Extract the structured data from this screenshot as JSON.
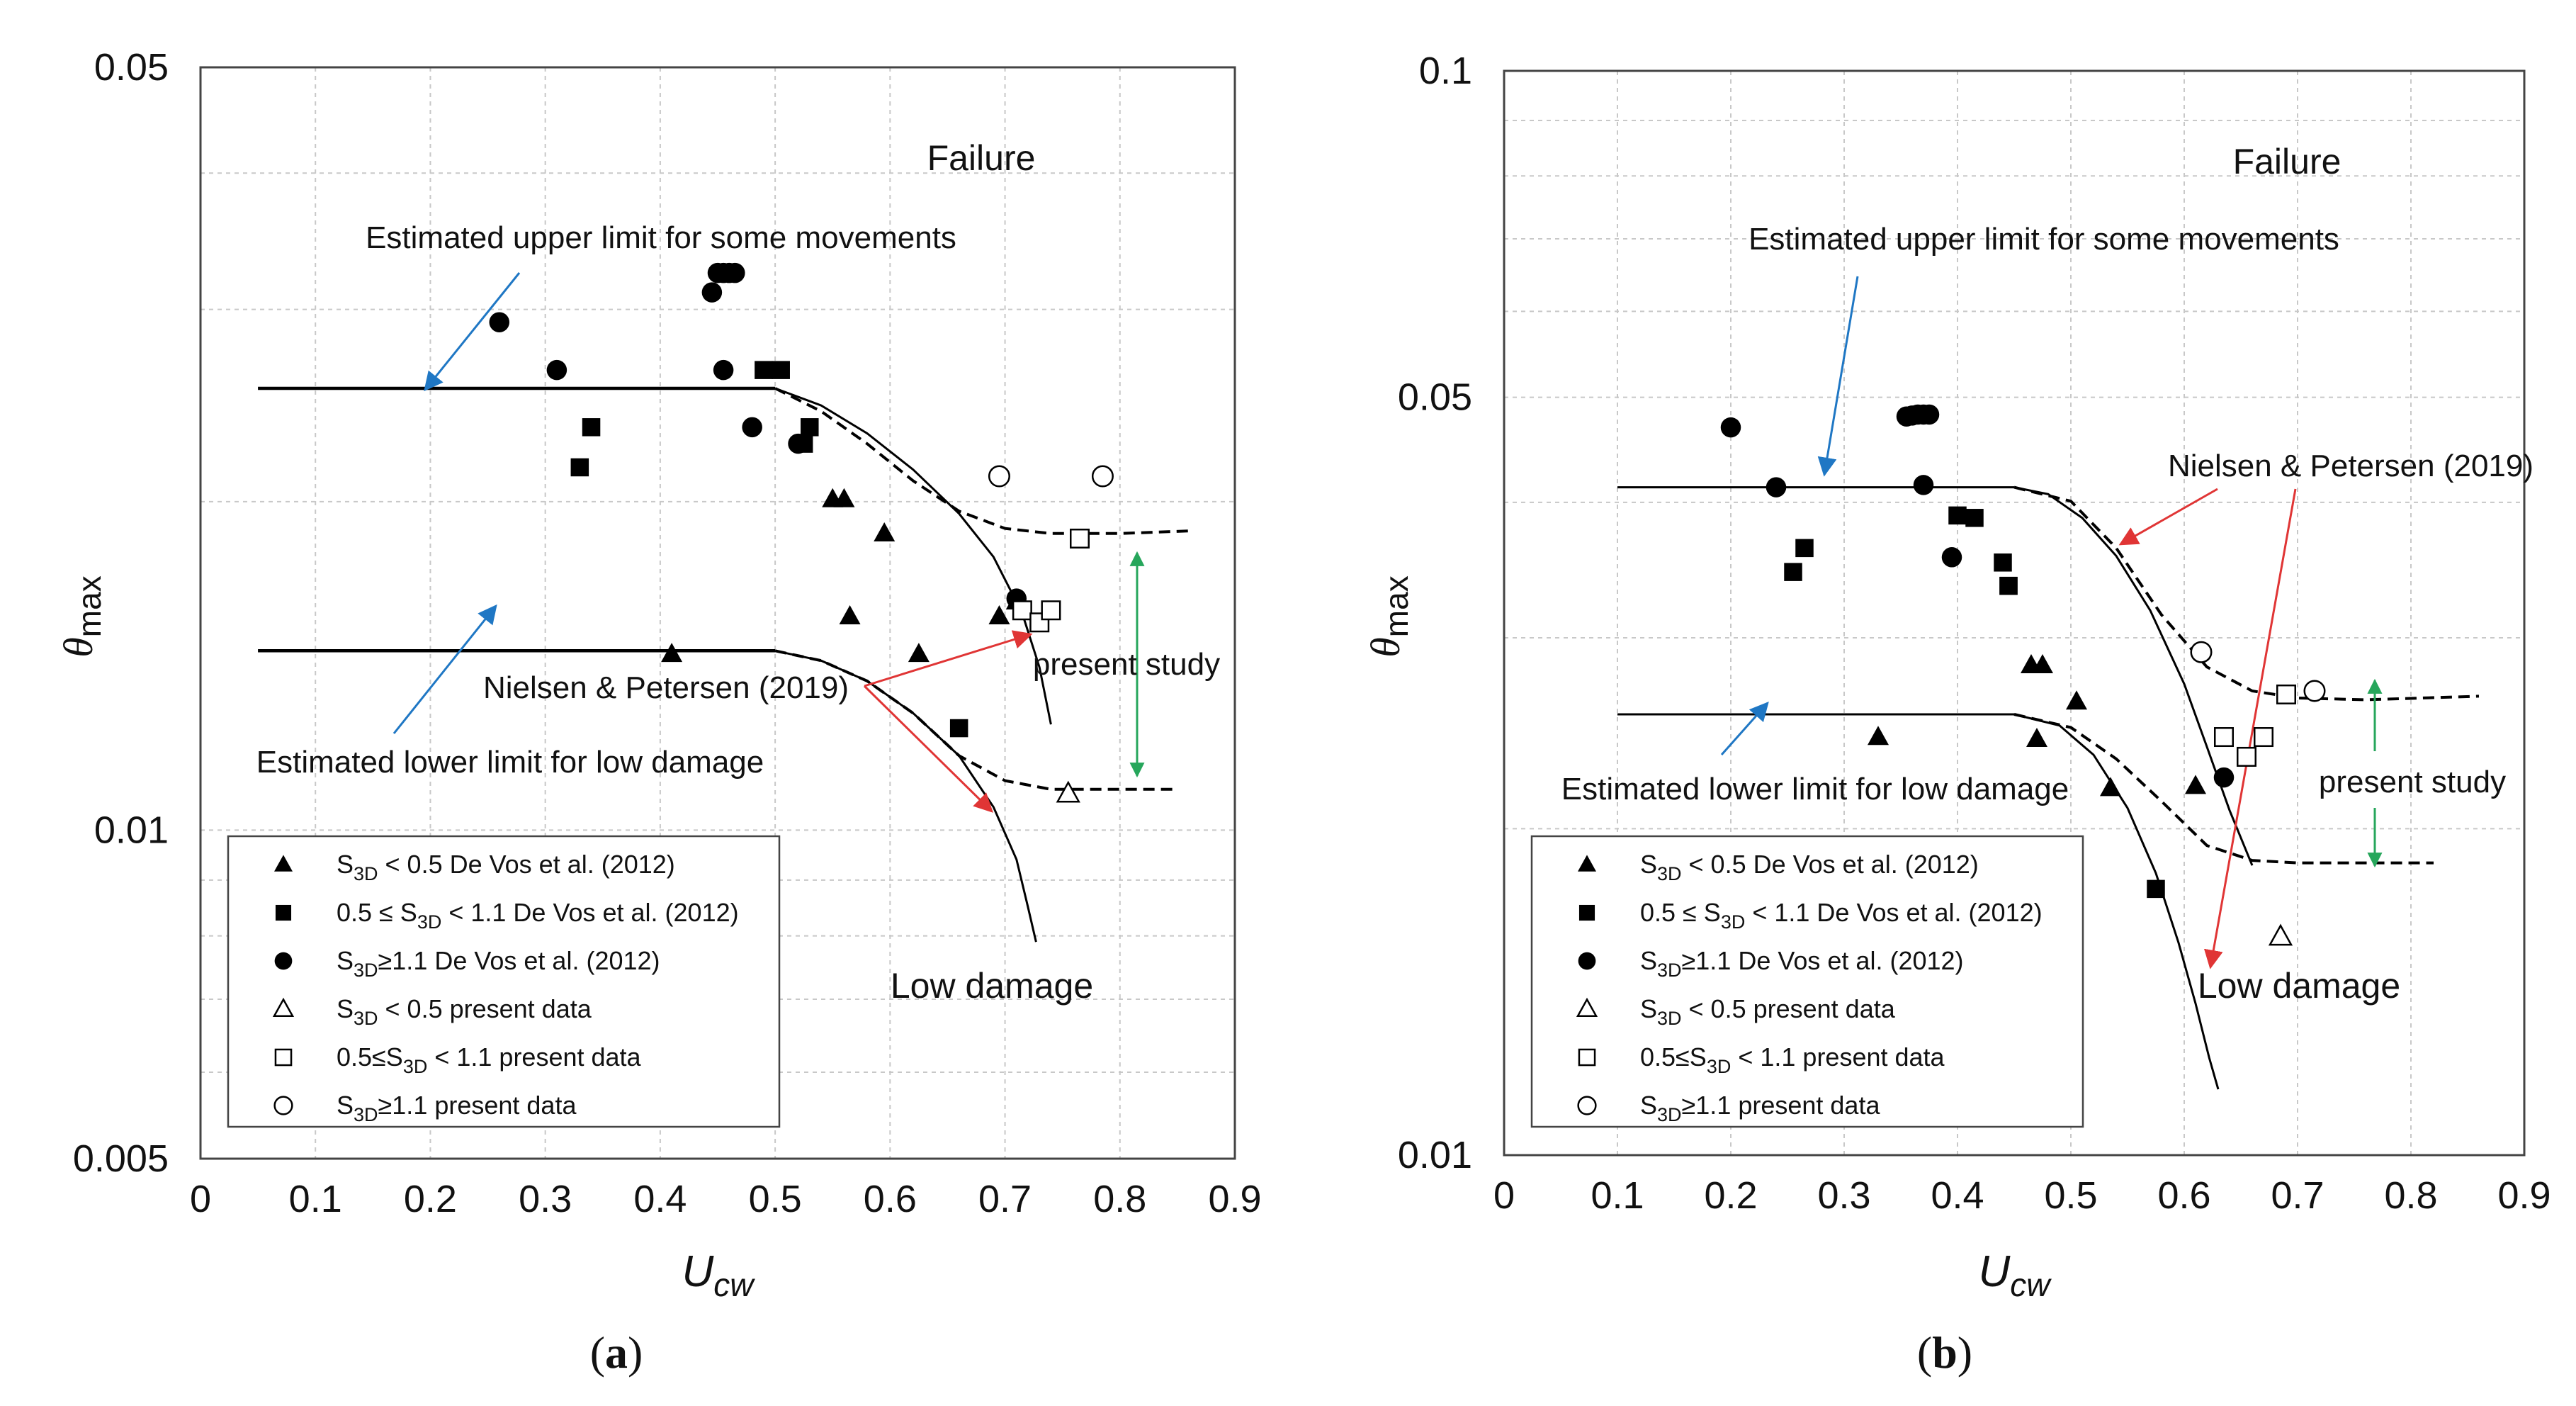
{
  "chart_data": [
    {
      "type": "scatter",
      "panel_label": "a",
      "xlabel": "U",
      "xlabel_sub": "cw",
      "ylabel": "θ",
      "ylabel_sub": "max",
      "y_scale": "log",
      "xlim": [
        0,
        0.9
      ],
      "ylim": [
        0.005,
        0.05
      ],
      "x_ticks": [
        "0",
        "0.1",
        "0.2",
        "0.3",
        "0.4",
        "0.5",
        "0.6",
        "0.7",
        "0.8",
        "0.9"
      ],
      "y_ticks": [
        "0.005",
        "0.01",
        "0.05"
      ],
      "grid": true,
      "annotations": {
        "failure": "Failure",
        "low_damage": "Low damage",
        "upper_limit": "Estimated upper limit for some movements",
        "lower_limit": "Estimated lower limit for low damage",
        "nielsen": "Nielsen & Petersen (2019)",
        "present_study": "present study"
      },
      "legend": [
        {
          "marker": "triangle-filled",
          "pre": "S",
          "sub": "3D",
          "post": " < 0.5 De Vos et al. (2012)"
        },
        {
          "marker": "square-filled",
          "pre": "0.5 ≤ S",
          "sub": "3D",
          "post": " < 1.1 De Vos et al. (2012)"
        },
        {
          "marker": "circle-filled",
          "pre": "S",
          "sub": "3D",
          "post": "≥1.1 De Vos et al. (2012)"
        },
        {
          "marker": "triangle-open",
          "pre": "S",
          "sub": "3D",
          "post": " < 0.5 present data"
        },
        {
          "marker": "square-open",
          "pre": "0.5≤S",
          "sub": "3D",
          "post": " < 1.1 present data"
        },
        {
          "marker": "circle-open",
          "pre": "S",
          "sub": "3D",
          "post": "≥1.1 present data"
        }
      ],
      "series": [
        {
          "name": "S3D < 0.5 De Vos et al. (2012)",
          "marker": "triangle-filled",
          "x": [
            0.41,
            0.55,
            0.56,
            0.595,
            0.565,
            0.625,
            0.695,
            0.71
          ],
          "y": [
            0.0145,
            0.0201,
            0.0201,
            0.0187,
            0.0157,
            0.0145,
            0.0157,
            0.0162
          ]
        },
        {
          "name": "0.5 ≤ S3D < 1.1 De Vos et al. (2012)",
          "marker": "square-filled",
          "x": [
            0.33,
            0.34,
            0.49,
            0.505,
            0.525,
            0.53,
            0.66
          ],
          "y": [
            0.0215,
            0.0234,
            0.0264,
            0.0264,
            0.0226,
            0.0234,
            0.0124
          ]
        },
        {
          "name": "S3D ≥ 1.1 De Vos et al. (2012)",
          "marker": "circle-filled",
          "x": [
            0.26,
            0.31,
            0.445,
            0.45,
            0.455,
            0.46,
            0.465,
            0.455,
            0.48,
            0.52,
            0.71
          ],
          "y": [
            0.0292,
            0.0264,
            0.0311,
            0.0324,
            0.0324,
            0.0324,
            0.0324,
            0.0264,
            0.0234,
            0.0226,
            0.0163
          ]
        },
        {
          "name": "S3D < 0.5 present data",
          "marker": "triangle-open",
          "x": [
            0.755
          ],
          "y": [
            0.0108
          ]
        },
        {
          "name": "0.5 ≤ S3D < 1.1 present data",
          "marker": "square-open",
          "x": [
            0.715,
            0.73,
            0.74,
            0.765
          ],
          "y": [
            0.0159,
            0.0155,
            0.0159,
            0.0185
          ]
        },
        {
          "name": "S3D ≥ 1.1 present data",
          "marker": "circle-open",
          "x": [
            0.695,
            0.785
          ],
          "y": [
            0.0211,
            0.0211
          ]
        }
      ],
      "curves": [
        {
          "name": "Estimated upper limit for some movements",
          "style": "solid-thick",
          "x": [
            0.05,
            0.5
          ],
          "y": [
            0.0254,
            0.0254
          ]
        },
        {
          "name": "Estimated lower limit for low damage",
          "style": "solid-thick",
          "x": [
            0.05,
            0.5
          ],
          "y": [
            0.0146,
            0.0146
          ]
        },
        {
          "name": "Nielsen & Petersen (2019) upper",
          "style": "solid-thin",
          "x": [
            0.5,
            0.54,
            0.58,
            0.62,
            0.66,
            0.69,
            0.715,
            0.73,
            0.74
          ],
          "y": [
            0.0254,
            0.0245,
            0.0231,
            0.0214,
            0.0195,
            0.0178,
            0.0158,
            0.0141,
            0.0125
          ]
        },
        {
          "name": "Nielsen & Petersen (2019) lower",
          "style": "solid-thin",
          "x": [
            0.5,
            0.54,
            0.58,
            0.62,
            0.66,
            0.69,
            0.71,
            0.72,
            0.727
          ],
          "y": [
            0.0146,
            0.0143,
            0.0137,
            0.0128,
            0.0117,
            0.0105,
            0.0094,
            0.0085,
            0.0079
          ]
        },
        {
          "name": "present study upper",
          "style": "dashed",
          "x": [
            0.5,
            0.54,
            0.58,
            0.62,
            0.66,
            0.7,
            0.74,
            0.8,
            0.86
          ],
          "y": [
            0.0254,
            0.0242,
            0.0226,
            0.0209,
            0.0196,
            0.0189,
            0.0187,
            0.0187,
            0.0188
          ]
        },
        {
          "name": "present study lower",
          "style": "dashed",
          "x": [
            0.5,
            0.54,
            0.58,
            0.62,
            0.66,
            0.7,
            0.74,
            0.8,
            0.85
          ],
          "y": [
            0.0146,
            0.0143,
            0.0137,
            0.0128,
            0.0117,
            0.0111,
            0.0109,
            0.0109,
            0.0109
          ]
        }
      ]
    },
    {
      "type": "scatter",
      "panel_label": "b",
      "xlabel": "U",
      "xlabel_sub": "cw",
      "ylabel": "θ",
      "ylabel_sub": "max",
      "y_scale": "log",
      "xlim": [
        0,
        0.9
      ],
      "ylim": [
        0.01,
        0.1
      ],
      "x_ticks": [
        "0",
        "0.1",
        "0.2",
        "0.3",
        "0.4",
        "0.5",
        "0.6",
        "0.7",
        "0.8",
        "0.9"
      ],
      "y_ticks": [
        "0.01",
        "0.05",
        "0.1"
      ],
      "grid": true,
      "annotations": {
        "failure": "Failure",
        "low_damage": "Low damage",
        "upper_limit": "Estimated upper limit for some movements",
        "lower_limit": "Estimated lower limit for low damage",
        "nielsen": "Nielsen & Petersen (2019)",
        "present_study": "present study"
      },
      "legend": [
        {
          "marker": "triangle-filled",
          "pre": "S",
          "sub": "3D",
          "post": " < 0.5 De Vos et al. (2012)"
        },
        {
          "marker": "square-filled",
          "pre": "0.5 ≤ S",
          "sub": "3D",
          "post": " < 1.1 De Vos et al. (2012)"
        },
        {
          "marker": "circle-filled",
          "pre": "S",
          "sub": "3D",
          "post": "≥1.1 De Vos et al. (2012)"
        },
        {
          "marker": "triangle-open",
          "pre": "S",
          "sub": "3D",
          "post": " < 0.5 present data"
        },
        {
          "marker": "square-open",
          "pre": "0.5≤S",
          "sub": "3D",
          "post": " < 1.1 present data"
        },
        {
          "marker": "circle-open",
          "pre": "S",
          "sub": "3D",
          "post": "≥1.1 present data"
        }
      ],
      "series": [
        {
          "name": "S3D < 0.5 De Vos et al. (2012)",
          "marker": "triangle-filled",
          "x": [
            0.33,
            0.465,
            0.475,
            0.505,
            0.47,
            0.535,
            0.61
          ],
          "y": [
            0.0243,
            0.0283,
            0.0283,
            0.0262,
            0.0242,
            0.0218,
            0.0219
          ]
        },
        {
          "name": "0.5 ≤ S3D < 1.1 De Vos et al. (2012)",
          "marker": "square-filled",
          "x": [
            0.255,
            0.265,
            0.4,
            0.415,
            0.44,
            0.445,
            0.445,
            0.575
          ],
          "y": [
            0.0345,
            0.0363,
            0.0389,
            0.0387,
            0.0352,
            0.0335,
            0.0335,
            0.0176
          ]
        },
        {
          "name": "S3D ≥ 1.1 De Vos et al. (2012)",
          "marker": "circle-filled",
          "x": [
            0.2,
            0.24,
            0.355,
            0.36,
            0.365,
            0.37,
            0.375,
            0.37,
            0.395,
            0.635
          ],
          "y": [
            0.0469,
            0.0413,
            0.048,
            0.0481,
            0.0482,
            0.0482,
            0.0482,
            0.0415,
            0.0356,
            0.0223
          ]
        },
        {
          "name": "S3D < 0.5 present data",
          "marker": "triangle-open",
          "x": [
            0.685
          ],
          "y": [
            0.0159
          ]
        },
        {
          "name": "0.5 ≤ S3D < 1.1 present data",
          "marker": "square-open",
          "x": [
            0.635,
            0.655,
            0.67,
            0.69
          ],
          "y": [
            0.0243,
            0.0233,
            0.0243,
            0.0266
          ]
        },
        {
          "name": "S3D ≥ 1.1 present data",
          "marker": "circle-open",
          "x": [
            0.615,
            0.715
          ],
          "y": [
            0.0291,
            0.0268
          ]
        }
      ],
      "curves": [
        {
          "name": "Estimated upper limit for some movements",
          "style": "solid-thin",
          "x": [
            0.1,
            0.45
          ],
          "y": [
            0.0413,
            0.0413
          ]
        },
        {
          "name": "Estimated lower limit for low damage",
          "style": "solid-thin",
          "x": [
            0.1,
            0.45
          ],
          "y": [
            0.0255,
            0.0255
          ]
        },
        {
          "name": "Nielsen & Petersen (2019) upper",
          "style": "solid-thin",
          "x": [
            0.45,
            0.48,
            0.51,
            0.54,
            0.57,
            0.6,
            0.62,
            0.64,
            0.66
          ],
          "y": [
            0.0413,
            0.0407,
            0.0387,
            0.0357,
            0.0318,
            0.0272,
            0.0238,
            0.0208,
            0.0185
          ]
        },
        {
          "name": "Nielsen & Petersen (2019) lower",
          "style": "solid-thin",
          "x": [
            0.45,
            0.49,
            0.52,
            0.55,
            0.575,
            0.595,
            0.61,
            0.622,
            0.63
          ],
          "y": [
            0.0255,
            0.0249,
            0.0234,
            0.0209,
            0.0182,
            0.0157,
            0.0138,
            0.0123,
            0.0115
          ]
        },
        {
          "name": "present study upper",
          "style": "dashed",
          "x": [
            0.45,
            0.5,
            0.54,
            0.58,
            0.62,
            0.66,
            0.7,
            0.76,
            0.86
          ],
          "y": [
            0.0413,
            0.0401,
            0.0363,
            0.0315,
            0.0282,
            0.0268,
            0.0264,
            0.0263,
            0.0265
          ]
        },
        {
          "name": "present study lower",
          "style": "dashed",
          "x": [
            0.45,
            0.5,
            0.54,
            0.58,
            0.62,
            0.66,
            0.7,
            0.76,
            0.82
          ],
          "y": [
            0.0255,
            0.0248,
            0.0232,
            0.0212,
            0.0193,
            0.0187,
            0.0186,
            0.0186,
            0.0186
          ]
        }
      ]
    }
  ]
}
